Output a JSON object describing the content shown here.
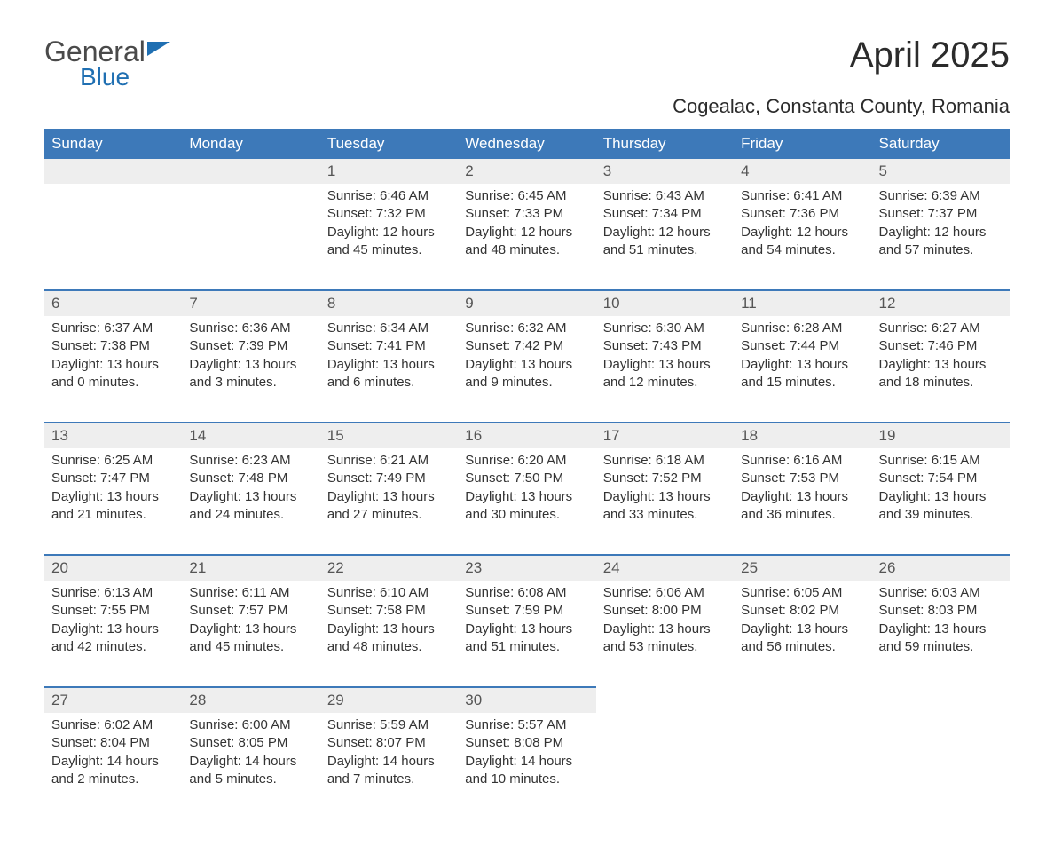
{
  "brand": {
    "general": "General",
    "blue": "Blue"
  },
  "title": "April 2025",
  "location": "Cogealac, Constanta County, Romania",
  "colors": {
    "header_bg": "#3d79b9",
    "header_text": "#ffffff",
    "daynum_bg": "#eeeeee",
    "accent_border": "#3d79b9",
    "body_text": "#333333",
    "logo_gray": "#4a4a4a",
    "logo_blue": "#1f6fb2",
    "page_bg": "#ffffff"
  },
  "fonts": {
    "title_size_pt": 30,
    "subtitle_size_pt": 17,
    "dayhead_size_pt": 13,
    "daynum_size_pt": 13,
    "body_size_pt": 11
  },
  "day_names": [
    "Sunday",
    "Monday",
    "Tuesday",
    "Wednesday",
    "Thursday",
    "Friday",
    "Saturday"
  ],
  "weeks": [
    [
      null,
      null,
      {
        "n": "1",
        "sunrise": "Sunrise: 6:46 AM",
        "sunset": "Sunset: 7:32 PM",
        "dl1": "Daylight: 12 hours",
        "dl2": "and 45 minutes."
      },
      {
        "n": "2",
        "sunrise": "Sunrise: 6:45 AM",
        "sunset": "Sunset: 7:33 PM",
        "dl1": "Daylight: 12 hours",
        "dl2": "and 48 minutes."
      },
      {
        "n": "3",
        "sunrise": "Sunrise: 6:43 AM",
        "sunset": "Sunset: 7:34 PM",
        "dl1": "Daylight: 12 hours",
        "dl2": "and 51 minutes."
      },
      {
        "n": "4",
        "sunrise": "Sunrise: 6:41 AM",
        "sunset": "Sunset: 7:36 PM",
        "dl1": "Daylight: 12 hours",
        "dl2": "and 54 minutes."
      },
      {
        "n": "5",
        "sunrise": "Sunrise: 6:39 AM",
        "sunset": "Sunset: 7:37 PM",
        "dl1": "Daylight: 12 hours",
        "dl2": "and 57 minutes."
      }
    ],
    [
      {
        "n": "6",
        "sunrise": "Sunrise: 6:37 AM",
        "sunset": "Sunset: 7:38 PM",
        "dl1": "Daylight: 13 hours",
        "dl2": "and 0 minutes."
      },
      {
        "n": "7",
        "sunrise": "Sunrise: 6:36 AM",
        "sunset": "Sunset: 7:39 PM",
        "dl1": "Daylight: 13 hours",
        "dl2": "and 3 minutes."
      },
      {
        "n": "8",
        "sunrise": "Sunrise: 6:34 AM",
        "sunset": "Sunset: 7:41 PM",
        "dl1": "Daylight: 13 hours",
        "dl2": "and 6 minutes."
      },
      {
        "n": "9",
        "sunrise": "Sunrise: 6:32 AM",
        "sunset": "Sunset: 7:42 PM",
        "dl1": "Daylight: 13 hours",
        "dl2": "and 9 minutes."
      },
      {
        "n": "10",
        "sunrise": "Sunrise: 6:30 AM",
        "sunset": "Sunset: 7:43 PM",
        "dl1": "Daylight: 13 hours",
        "dl2": "and 12 minutes."
      },
      {
        "n": "11",
        "sunrise": "Sunrise: 6:28 AM",
        "sunset": "Sunset: 7:44 PM",
        "dl1": "Daylight: 13 hours",
        "dl2": "and 15 minutes."
      },
      {
        "n": "12",
        "sunrise": "Sunrise: 6:27 AM",
        "sunset": "Sunset: 7:46 PM",
        "dl1": "Daylight: 13 hours",
        "dl2": "and 18 minutes."
      }
    ],
    [
      {
        "n": "13",
        "sunrise": "Sunrise: 6:25 AM",
        "sunset": "Sunset: 7:47 PM",
        "dl1": "Daylight: 13 hours",
        "dl2": "and 21 minutes."
      },
      {
        "n": "14",
        "sunrise": "Sunrise: 6:23 AM",
        "sunset": "Sunset: 7:48 PM",
        "dl1": "Daylight: 13 hours",
        "dl2": "and 24 minutes."
      },
      {
        "n": "15",
        "sunrise": "Sunrise: 6:21 AM",
        "sunset": "Sunset: 7:49 PM",
        "dl1": "Daylight: 13 hours",
        "dl2": "and 27 minutes."
      },
      {
        "n": "16",
        "sunrise": "Sunrise: 6:20 AM",
        "sunset": "Sunset: 7:50 PM",
        "dl1": "Daylight: 13 hours",
        "dl2": "and 30 minutes."
      },
      {
        "n": "17",
        "sunrise": "Sunrise: 6:18 AM",
        "sunset": "Sunset: 7:52 PM",
        "dl1": "Daylight: 13 hours",
        "dl2": "and 33 minutes."
      },
      {
        "n": "18",
        "sunrise": "Sunrise: 6:16 AM",
        "sunset": "Sunset: 7:53 PM",
        "dl1": "Daylight: 13 hours",
        "dl2": "and 36 minutes."
      },
      {
        "n": "19",
        "sunrise": "Sunrise: 6:15 AM",
        "sunset": "Sunset: 7:54 PM",
        "dl1": "Daylight: 13 hours",
        "dl2": "and 39 minutes."
      }
    ],
    [
      {
        "n": "20",
        "sunrise": "Sunrise: 6:13 AM",
        "sunset": "Sunset: 7:55 PM",
        "dl1": "Daylight: 13 hours",
        "dl2": "and 42 minutes."
      },
      {
        "n": "21",
        "sunrise": "Sunrise: 6:11 AM",
        "sunset": "Sunset: 7:57 PM",
        "dl1": "Daylight: 13 hours",
        "dl2": "and 45 minutes."
      },
      {
        "n": "22",
        "sunrise": "Sunrise: 6:10 AM",
        "sunset": "Sunset: 7:58 PM",
        "dl1": "Daylight: 13 hours",
        "dl2": "and 48 minutes."
      },
      {
        "n": "23",
        "sunrise": "Sunrise: 6:08 AM",
        "sunset": "Sunset: 7:59 PM",
        "dl1": "Daylight: 13 hours",
        "dl2": "and 51 minutes."
      },
      {
        "n": "24",
        "sunrise": "Sunrise: 6:06 AM",
        "sunset": "Sunset: 8:00 PM",
        "dl1": "Daylight: 13 hours",
        "dl2": "and 53 minutes."
      },
      {
        "n": "25",
        "sunrise": "Sunrise: 6:05 AM",
        "sunset": "Sunset: 8:02 PM",
        "dl1": "Daylight: 13 hours",
        "dl2": "and 56 minutes."
      },
      {
        "n": "26",
        "sunrise": "Sunrise: 6:03 AM",
        "sunset": "Sunset: 8:03 PM",
        "dl1": "Daylight: 13 hours",
        "dl2": "and 59 minutes."
      }
    ],
    [
      {
        "n": "27",
        "sunrise": "Sunrise: 6:02 AM",
        "sunset": "Sunset: 8:04 PM",
        "dl1": "Daylight: 14 hours",
        "dl2": "and 2 minutes."
      },
      {
        "n": "28",
        "sunrise": "Sunrise: 6:00 AM",
        "sunset": "Sunset: 8:05 PM",
        "dl1": "Daylight: 14 hours",
        "dl2": "and 5 minutes."
      },
      {
        "n": "29",
        "sunrise": "Sunrise: 5:59 AM",
        "sunset": "Sunset: 8:07 PM",
        "dl1": "Daylight: 14 hours",
        "dl2": "and 7 minutes."
      },
      {
        "n": "30",
        "sunrise": "Sunrise: 5:57 AM",
        "sunset": "Sunset: 8:08 PM",
        "dl1": "Daylight: 14 hours",
        "dl2": "and 10 minutes."
      },
      null,
      null,
      null
    ]
  ]
}
